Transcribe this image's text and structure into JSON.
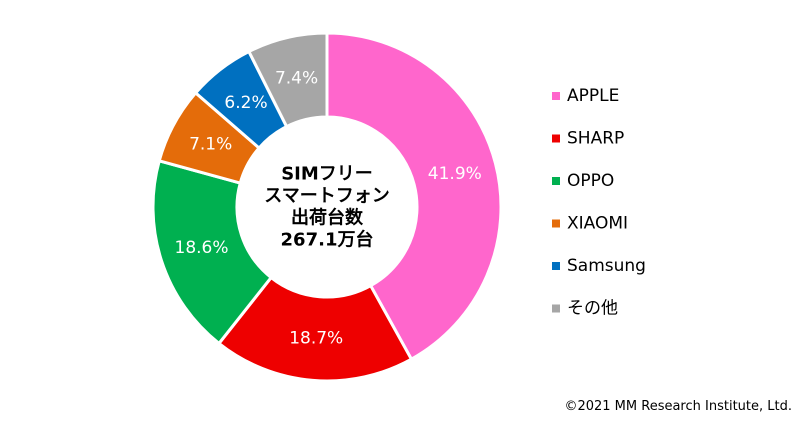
{
  "chart_data": {
    "type": "pie",
    "variant": "donut",
    "center_label": [
      "SIMフリー",
      "スマートフォン",
      "出荷台数",
      "267.1万台"
    ],
    "series": [
      {
        "name": "APPLE",
        "value": 41.9,
        "label": "41.9%",
        "color": "#FF66CC"
      },
      {
        "name": "SHARP",
        "value": 18.7,
        "label": "18.7%",
        "color": "#EE0000"
      },
      {
        "name": "OPPO",
        "value": 18.6,
        "label": "18.6%",
        "color": "#00B050"
      },
      {
        "name": "XIAOMI",
        "value": 7.1,
        "label": "7.1%",
        "color": "#E46C0A"
      },
      {
        "name": "Samsung",
        "value": 6.2,
        "label": "6.2%",
        "color": "#0070C0"
      },
      {
        "name": "その他",
        "value": 7.4,
        "label": "7.4%",
        "color": "#A6A6A6"
      }
    ],
    "legend_position": "right",
    "start_angle": "top",
    "direction": "clockwise"
  },
  "footer": {
    "copyright": "©2021 MM Research Institute, Ltd."
  }
}
